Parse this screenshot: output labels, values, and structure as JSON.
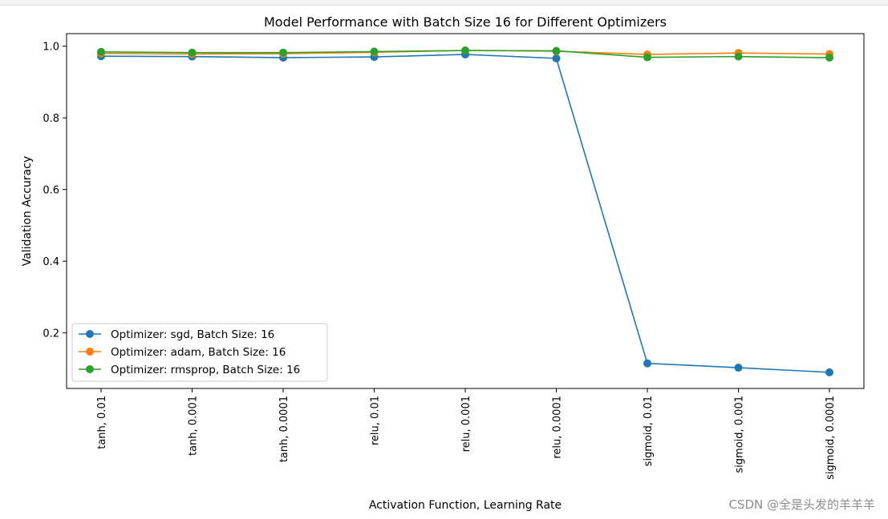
{
  "chart_data": {
    "type": "line",
    "title": "Model Performance with Batch Size 16 for Different Optimizers",
    "xlabel": "Activation Function, Learning Rate",
    "ylabel": "Validation Accuracy",
    "categories": [
      "tanh, 0.01",
      "tanh, 0.001",
      "tanh, 0.0001",
      "relu, 0.01",
      "relu, 0.001",
      "relu, 0.0001",
      "sigmoid, 0.01",
      "sigmoid, 0.001",
      "sigmoid, 0.0001"
    ],
    "ylim": [
      0.045,
      1.035
    ],
    "yticks": [
      0.2,
      0.4,
      0.6,
      0.8,
      1.0
    ],
    "ytick_labels": [
      "0.2",
      "0.4",
      "0.6",
      "0.8",
      "1.0"
    ],
    "grid": false,
    "legend_position": "lower-left",
    "series": [
      {
        "name": "Optimizer: sgd, Batch Size: 16",
        "color": "#1f77b4",
        "values": [
          0.972,
          0.971,
          0.968,
          0.97,
          0.977,
          0.966,
          0.115,
          0.103,
          0.09
        ]
      },
      {
        "name": "Optimizer: adam, Batch Size: 16",
        "color": "#ff7f0e",
        "values": [
          0.98,
          0.978,
          0.979,
          0.983,
          0.988,
          0.986,
          0.977,
          0.981,
          0.978
        ]
      },
      {
        "name": "Optimizer: rmsprop, Batch Size: 16",
        "color": "#2ca02c",
        "values": [
          0.984,
          0.982,
          0.982,
          0.985,
          0.988,
          0.987,
          0.969,
          0.971,
          0.968
        ]
      }
    ]
  },
  "watermark": "CSDN @全是头发的羊羊羊"
}
